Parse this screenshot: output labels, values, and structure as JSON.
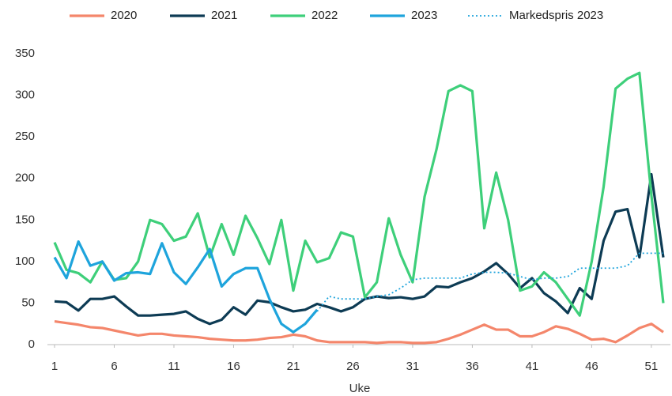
{
  "chart_data": {
    "type": "line",
    "x_label": "Uke",
    "x": [
      1,
      2,
      3,
      4,
      5,
      6,
      7,
      8,
      9,
      10,
      11,
      12,
      13,
      14,
      15,
      16,
      17,
      18,
      19,
      20,
      21,
      22,
      23,
      24,
      25,
      26,
      27,
      28,
      29,
      30,
      31,
      32,
      33,
      34,
      35,
      36,
      37,
      38,
      39,
      40,
      41,
      42,
      43,
      44,
      45,
      46,
      47,
      48,
      49,
      50,
      51,
      52
    ],
    "xlim": [
      1,
      52
    ],
    "xticks": [
      1,
      6,
      11,
      16,
      21,
      26,
      31,
      36,
      41,
      46,
      51
    ],
    "ylim": [
      0,
      350
    ],
    "yticks": [
      0,
      50,
      100,
      150,
      200,
      250,
      300,
      350
    ],
    "grid": false,
    "legend": "top",
    "series": [
      {
        "name": "2020",
        "color": "#f4866b",
        "style": "solid",
        "values": [
          28,
          26,
          24,
          21,
          20,
          17,
          14,
          11,
          13,
          13,
          11,
          10,
          9,
          7,
          6,
          5,
          5,
          6,
          8,
          9,
          12,
          10,
          5,
          3,
          3,
          3,
          3,
          2,
          3,
          3,
          2,
          2,
          3,
          7,
          12,
          18,
          24,
          18,
          18,
          10,
          10,
          15,
          22,
          19,
          13,
          6,
          7,
          3,
          11,
          20,
          25,
          15
        ]
      },
      {
        "name": "2021",
        "color": "#0d3b54",
        "style": "solid",
        "values": [
          52,
          51,
          41,
          55,
          55,
          58,
          46,
          35,
          35,
          36,
          37,
          40,
          31,
          25,
          30,
          45,
          36,
          53,
          51,
          45,
          40,
          42,
          49,
          45,
          40,
          45,
          55,
          58,
          56,
          57,
          55,
          58,
          70,
          69,
          75,
          80,
          88,
          98,
          85,
          68,
          80,
          62,
          52,
          38,
          68,
          55,
          125,
          160,
          163,
          105,
          205,
          105
        ]
      },
      {
        "name": "2022",
        "color": "#3ecf7a",
        "style": "solid",
        "values": [
          123,
          90,
          86,
          75,
          100,
          78,
          80,
          100,
          150,
          145,
          125,
          130,
          158,
          105,
          145,
          108,
          155,
          128,
          97,
          150,
          65,
          125,
          99,
          104,
          135,
          130,
          57,
          75,
          152,
          108,
          75,
          178,
          235,
          305,
          312,
          305,
          140,
          207,
          150,
          65,
          70,
          87,
          75,
          55,
          35,
          100,
          190,
          308,
          320,
          327,
          180,
          50
        ]
      },
      {
        "name": "2023",
        "color": "#1ea4dc",
        "style": "solid",
        "values": [
          105,
          80,
          124,
          95,
          100,
          77,
          86,
          87,
          85,
          122,
          87,
          73,
          93,
          115,
          70,
          85,
          92,
          92,
          55,
          25,
          15,
          25,
          42,
          null,
          null,
          null,
          null,
          null,
          null,
          null,
          null,
          null,
          null,
          null,
          null,
          null,
          null,
          null,
          null,
          null,
          null,
          null,
          null,
          null,
          null,
          null,
          null,
          null,
          null,
          null,
          null,
          null
        ]
      },
      {
        "name": "Markedspris 2023",
        "color": "#1ea4dc",
        "style": "dotted",
        "values": [
          null,
          null,
          null,
          null,
          null,
          null,
          null,
          null,
          null,
          null,
          null,
          null,
          null,
          null,
          null,
          null,
          null,
          null,
          null,
          null,
          null,
          null,
          40,
          58,
          55,
          55,
          55,
          58,
          60,
          68,
          78,
          80,
          80,
          80,
          80,
          85,
          87,
          87,
          86,
          82,
          78,
          80,
          80,
          82,
          92,
          92,
          92,
          92,
          95,
          110,
          110,
          110
        ]
      }
    ]
  }
}
